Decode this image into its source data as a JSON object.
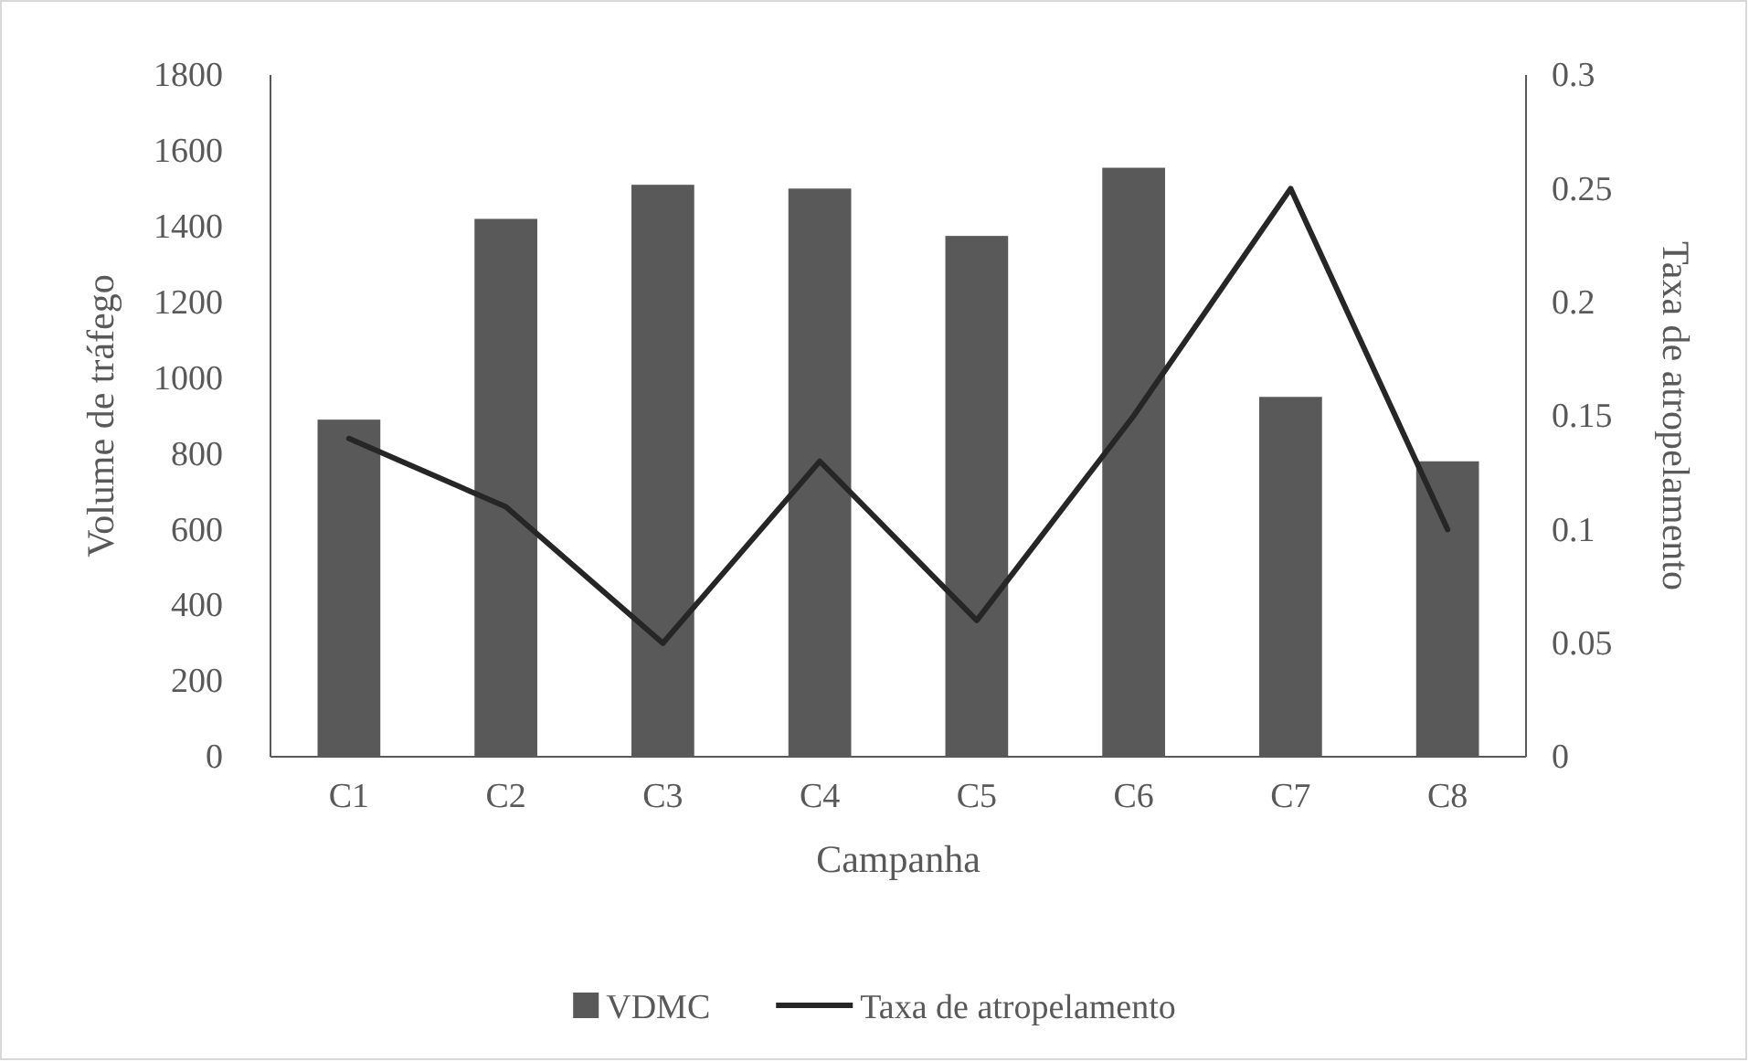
{
  "chart_data": {
    "type": "bar",
    "xlabel": "Campanha",
    "ylabel": "Volume de tráfego",
    "y2label": "Taxa de atropelamento",
    "categories": [
      "C1",
      "C2",
      "C3",
      "C4",
      "C5",
      "C6",
      "C7",
      "C8"
    ],
    "series": [
      {
        "name": "VDMC",
        "color": "#595959",
        "values": [
          890,
          1420,
          1510,
          1500,
          1375,
          1555,
          950,
          780
        ]
      },
      {
        "name": "Taxa de atropelamento",
        "type": "line",
        "axis": "y2",
        "color": "#262626",
        "values": [
          0.14,
          0.11,
          0.05,
          0.13,
          0.06,
          0.15,
          0.25,
          0.1
        ]
      }
    ],
    "ylim": [
      0,
      1800
    ],
    "yticks": [
      0,
      200,
      400,
      600,
      800,
      1000,
      1200,
      1400,
      1600,
      1800
    ],
    "y2lim": [
      0,
      0.3
    ],
    "y2ticks": [
      0,
      0.05,
      0.1,
      0.15,
      0.2,
      0.25,
      0.3
    ],
    "legend": "bottom",
    "grid": false
  }
}
